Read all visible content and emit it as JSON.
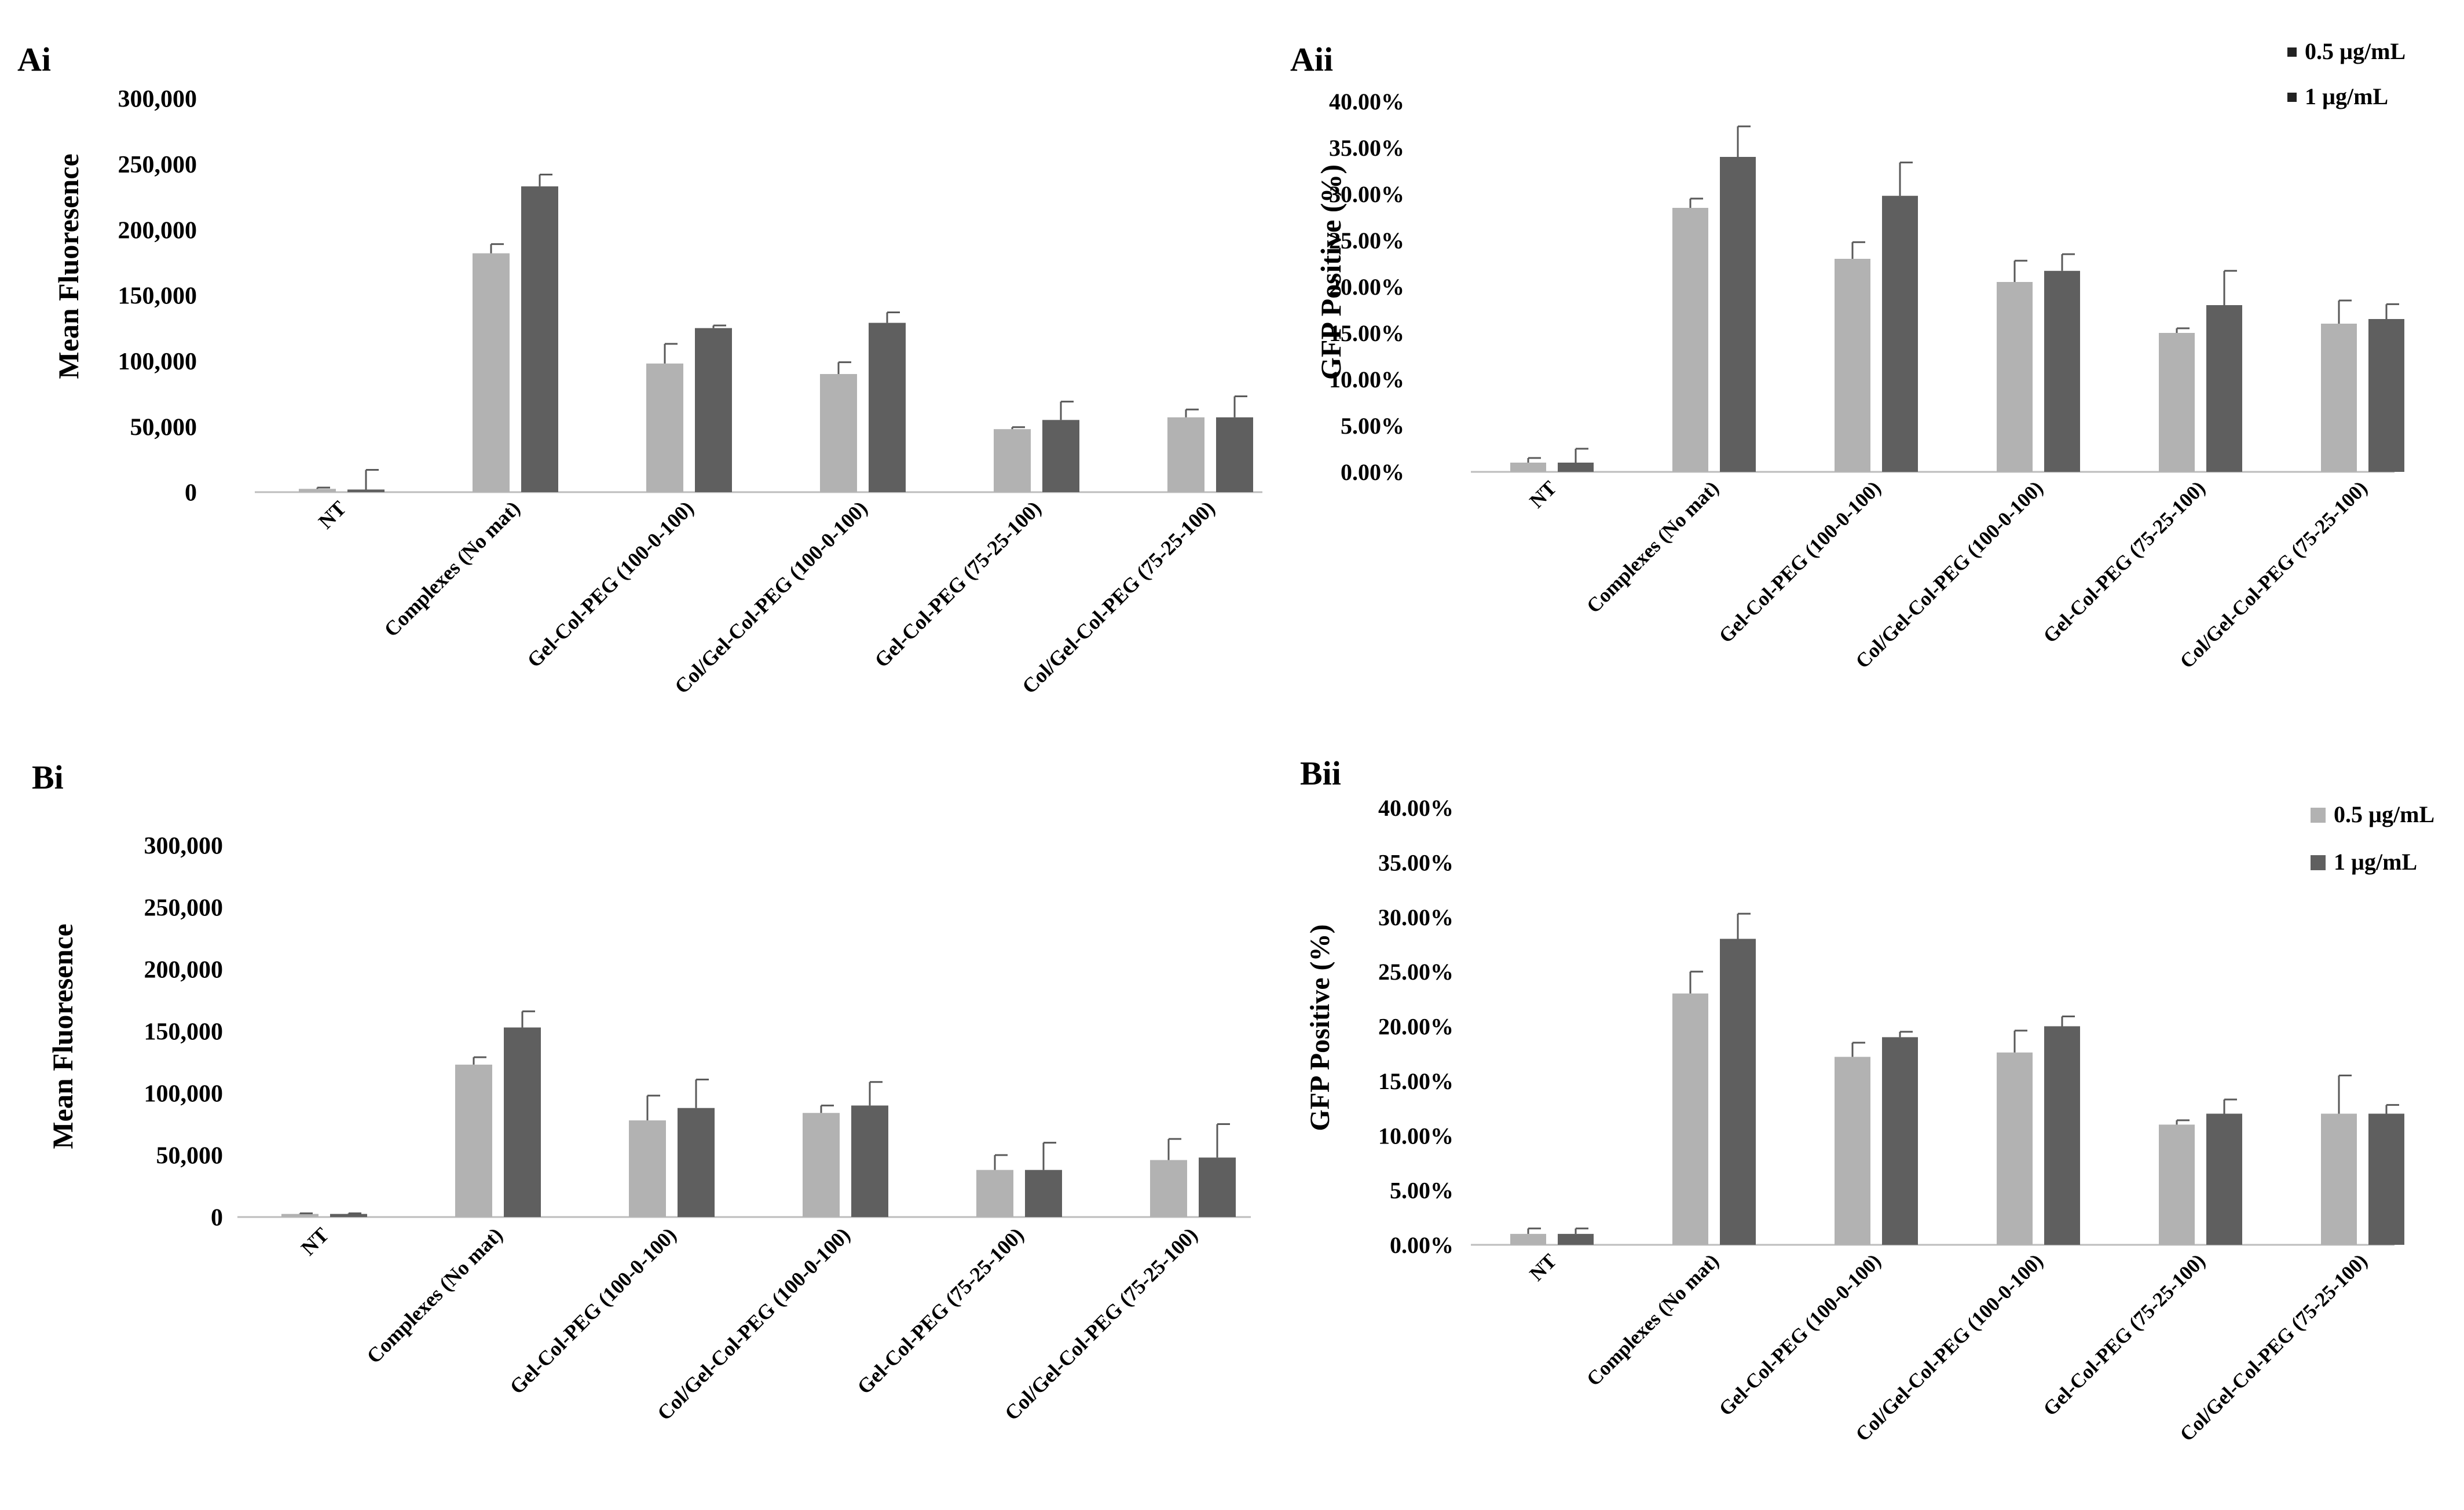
{
  "colors": {
    "series_light": "#b2b2b2",
    "series_dark": "#5f5f5f",
    "axis": "#bdbdbd"
  },
  "chart_data": [
    {
      "panel": "Ai",
      "type": "bar",
      "title": "",
      "xlabel": "",
      "ylabel": "Mean Fluoresence",
      "ylim": [
        0,
        300000
      ],
      "yticks": [
        "0",
        "50,000",
        "100,000",
        "150,000",
        "200,000",
        "250,000",
        "300,000"
      ],
      "categories": [
        "NT",
        "Complexes (No mat)",
        "Gel-Col-PEG (100-0-100)",
        "Col/Gel-Col-PEG (100-0-100)",
        "Gel-Col-PEG (75-25-100)",
        "Col/Gel-Col-PEG (75-25-100)"
      ],
      "series": [
        {
          "name": "0.5 µg/mL",
          "values": [
            2500,
            182000,
            98000,
            90000,
            48000,
            57000
          ],
          "errors": [
            1000,
            7000,
            15000,
            9000,
            1500,
            6000
          ]
        },
        {
          "name": "1 µg/mL",
          "values": [
            2000,
            233000,
            125000,
            129000,
            55000,
            57000
          ],
          "errors": [
            15000,
            9000,
            2000,
            8000,
            14000,
            16000
          ]
        }
      ],
      "legend": null
    },
    {
      "panel": "Aii",
      "type": "bar",
      "title": "",
      "xlabel": "",
      "ylabel": "GFP Positive (%)",
      "ylim": [
        0,
        40
      ],
      "yticks": [
        "0.00%",
        "5.00%",
        "10.00%",
        "15.00%",
        "20.00%",
        "25.00%",
        "30.00%",
        "35.00%",
        "40.00%"
      ],
      "categories": [
        "NT",
        "Complexes (No mat)",
        "Gel-Col-PEG (100-0-100)",
        "Col/Gel-Col-PEG (100-0-100)",
        "Gel-Col-PEG (75-25-100)",
        "Col/Gel-Col-PEG (75-25-100)"
      ],
      "series": [
        {
          "name": "0.5 µg/mL",
          "values": [
            1.0,
            28.5,
            23.0,
            20.5,
            15.0,
            16.0
          ],
          "errors": [
            0.5,
            1.0,
            1.8,
            2.3,
            0.5,
            2.5
          ]
        },
        {
          "name": "1 µg/mL",
          "values": [
            1.0,
            34.0,
            29.8,
            21.7,
            18.0,
            16.5
          ],
          "errors": [
            1.5,
            3.3,
            3.6,
            1.8,
            3.7,
            1.6
          ]
        }
      ],
      "legend": {
        "position": "top-right",
        "entries": [
          "0.5 µg/mL",
          "1 µg/mL"
        ]
      }
    },
    {
      "panel": "Bi",
      "type": "bar",
      "title": "",
      "xlabel": "",
      "ylabel": "Mean Fluoresence",
      "ylim": [
        0,
        300000
      ],
      "yticks": [
        "0",
        "50,000",
        "100,000",
        "150,000",
        "200,000",
        "250,000",
        "300,000"
      ],
      "categories": [
        "NT",
        "Complexes (No mat)",
        "Gel-Col-PEG (100-0-100)",
        "Col/Gel-Col-PEG (100-0-100)",
        "Gel-Col-PEG (75-25-100)",
        "Col/Gel-Col-PEG (75-25-100)"
      ],
      "series": [
        {
          "name": "0.5 µg/mL",
          "values": [
            2500,
            123000,
            78000,
            84000,
            38000,
            46000
          ],
          "errors": [
            500,
            6000,
            20000,
            6000,
            12000,
            17000
          ]
        },
        {
          "name": "1 µg/mL",
          "values": [
            2500,
            153000,
            88000,
            90000,
            38000,
            48000
          ],
          "errors": [
            500,
            13000,
            23000,
            19000,
            22000,
            27000
          ]
        }
      ],
      "legend": null
    },
    {
      "panel": "Bii",
      "type": "bar",
      "title": "",
      "xlabel": "",
      "ylabel": "GFP Positive (%)",
      "ylim": [
        0,
        40
      ],
      "yticks": [
        "0.00%",
        "5.00%",
        "10.00%",
        "15.00%",
        "20.00%",
        "25.00%",
        "30.00%",
        "35.00%",
        "40.00%"
      ],
      "categories": [
        "NT",
        "Complexes (No mat)",
        "Gel-Col-PEG (100-0-100)",
        "Col/Gel-Col-PEG (100-0-100)",
        "Gel-Col-PEG (75-25-100)",
        "Col/Gel-Col-PEG (75-25-100)"
      ],
      "series": [
        {
          "name": "0.5 µg/mL",
          "values": [
            1.0,
            23.0,
            17.2,
            17.6,
            11.0,
            12.0
          ],
          "errors": [
            0.5,
            2.0,
            1.3,
            2.0,
            0.4,
            3.5
          ]
        },
        {
          "name": "1 µg/mL",
          "values": [
            1.0,
            28.0,
            19.0,
            20.0,
            12.0,
            12.0
          ],
          "errors": [
            0.5,
            2.3,
            0.5,
            0.9,
            1.3,
            0.8
          ]
        }
      ],
      "legend": {
        "position": "top-right",
        "entries": [
          "0.5 µg/mL",
          "1 µg/mL"
        ]
      }
    }
  ]
}
